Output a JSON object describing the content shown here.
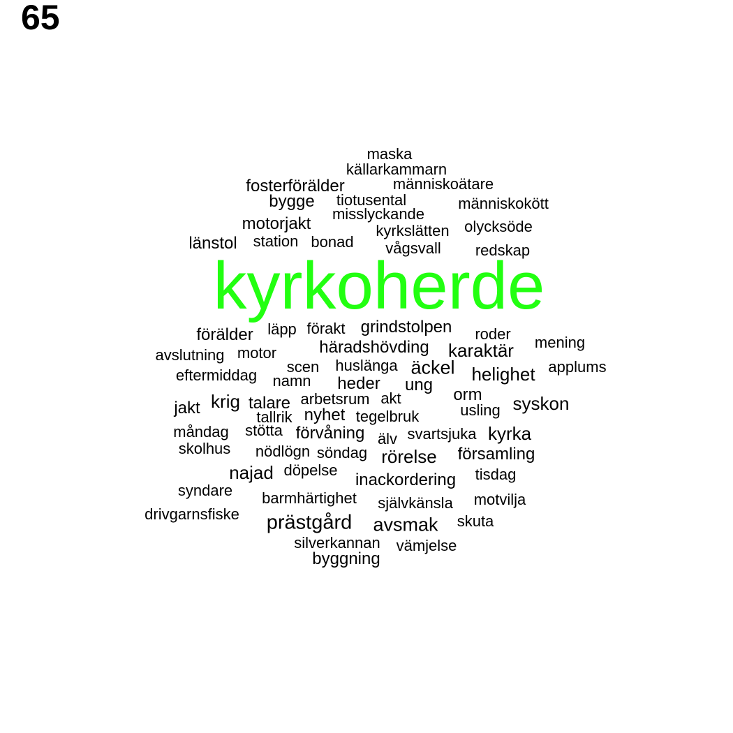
{
  "page_number": "65",
  "colors": {
    "highlight": "#22ff11",
    "text": "#000000",
    "background": "#ffffff"
  },
  "words": [
    {
      "text": "kyrkoherde",
      "weight": 100,
      "highlight": true
    },
    {
      "text": "prästgård",
      "weight": 20
    },
    {
      "text": "maska",
      "weight": 14
    },
    {
      "text": "källarkammarn",
      "weight": 14
    },
    {
      "text": "fosterförälder",
      "weight": 15
    },
    {
      "text": "människoätare",
      "weight": 14
    },
    {
      "text": "bygge",
      "weight": 15
    },
    {
      "text": "tiotusental",
      "weight": 14
    },
    {
      "text": "människokött",
      "weight": 14
    },
    {
      "text": "misslyckande",
      "weight": 14
    },
    {
      "text": "motorjakt",
      "weight": 15
    },
    {
      "text": "kyrkslätten",
      "weight": 14
    },
    {
      "text": "olycksöde",
      "weight": 14
    },
    {
      "text": "länstol",
      "weight": 15
    },
    {
      "text": "station",
      "weight": 14
    },
    {
      "text": "bonad",
      "weight": 14
    },
    {
      "text": "vågsvall",
      "weight": 14
    },
    {
      "text": "redskap",
      "weight": 14
    },
    {
      "text": "förälder",
      "weight": 15
    },
    {
      "text": "läpp",
      "weight": 14
    },
    {
      "text": "förakt",
      "weight": 14
    },
    {
      "text": "grindstolpen",
      "weight": 15
    },
    {
      "text": "roder",
      "weight": 14
    },
    {
      "text": "avslutning",
      "weight": 14
    },
    {
      "text": "motor",
      "weight": 14
    },
    {
      "text": "häradshövding",
      "weight": 15
    },
    {
      "text": "karaktär",
      "weight": 16
    },
    {
      "text": "mening",
      "weight": 14
    },
    {
      "text": "eftermiddag",
      "weight": 14
    },
    {
      "text": "scen",
      "weight": 14
    },
    {
      "text": "huslänga",
      "weight": 14
    },
    {
      "text": "äckel",
      "weight": 17
    },
    {
      "text": "helighet",
      "weight": 16
    },
    {
      "text": "applums",
      "weight": 14
    },
    {
      "text": "namn",
      "weight": 14
    },
    {
      "text": "heder",
      "weight": 15
    },
    {
      "text": "ung",
      "weight": 15
    },
    {
      "text": "jakt",
      "weight": 15
    },
    {
      "text": "krig",
      "weight": 16
    },
    {
      "text": "talare",
      "weight": 15
    },
    {
      "text": "arbetsrum",
      "weight": 14
    },
    {
      "text": "akt",
      "weight": 14
    },
    {
      "text": "orm",
      "weight": 15
    },
    {
      "text": "usling",
      "weight": 14
    },
    {
      "text": "syskon",
      "weight": 16
    },
    {
      "text": "tallrik",
      "weight": 14
    },
    {
      "text": "nyhet",
      "weight": 15
    },
    {
      "text": "tegelbruk",
      "weight": 14
    },
    {
      "text": "måndag",
      "weight": 14
    },
    {
      "text": "stötta",
      "weight": 14
    },
    {
      "text": "förvåning",
      "weight": 15
    },
    {
      "text": "älv",
      "weight": 14
    },
    {
      "text": "svartsjuka",
      "weight": 14
    },
    {
      "text": "kyrka",
      "weight": 16
    },
    {
      "text": "skolhus",
      "weight": 14
    },
    {
      "text": "nödlögn",
      "weight": 14
    },
    {
      "text": "söndag",
      "weight": 14
    },
    {
      "text": "rörelse",
      "weight": 16
    },
    {
      "text": "församling",
      "weight": 15
    },
    {
      "text": "najad",
      "weight": 16
    },
    {
      "text": "döpelse",
      "weight": 14
    },
    {
      "text": "inackordering",
      "weight": 15
    },
    {
      "text": "tisdag",
      "weight": 14
    },
    {
      "text": "syndare",
      "weight": 14
    },
    {
      "text": "barmhärtighet",
      "weight": 14
    },
    {
      "text": "självkänsla",
      "weight": 14
    },
    {
      "text": "motvilja",
      "weight": 14
    },
    {
      "text": "drivgarnsfiske",
      "weight": 14
    },
    {
      "text": "avsmak",
      "weight": 17
    },
    {
      "text": "skuta",
      "weight": 14
    },
    {
      "text": "silverkannan",
      "weight": 14
    },
    {
      "text": "vämjelse",
      "weight": 14
    },
    {
      "text": "byggning",
      "weight": 15
    }
  ]
}
